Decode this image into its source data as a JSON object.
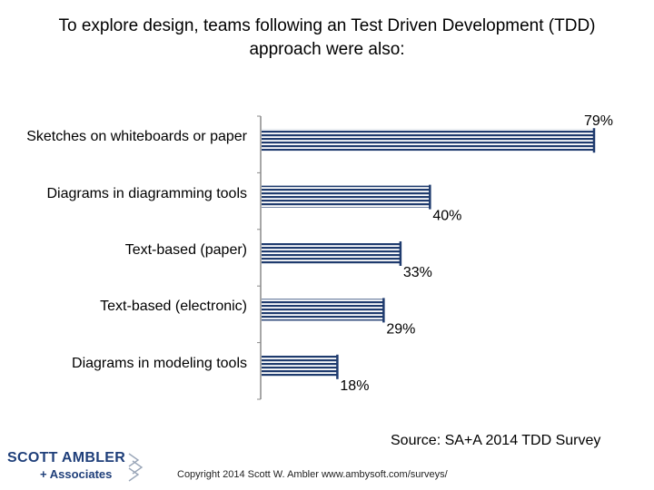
{
  "title": "To explore design, teams following an Test Driven Development (TDD) approach were also:",
  "chart_data": {
    "type": "bar",
    "orientation": "horizontal",
    "title": "To explore design, teams following an Test Driven Development (TDD) approach were also:",
    "categories": [
      "Sketches on whiteboards or paper",
      "Diagrams in diagramming tools",
      "Text-based (paper)",
      "Text-based (electronic)",
      "Diagrams in modeling tools"
    ],
    "values": [
      79,
      40,
      33,
      29,
      18
    ],
    "data_labels": [
      "79%",
      "40%",
      "33%",
      "29%",
      "18%"
    ],
    "xlim": [
      0,
      80
    ],
    "xlabel": "",
    "ylabel": "",
    "bar_color": "#1f3b6e",
    "stripe_color": "#ffffff"
  },
  "source": "Source: SA+A 2014 TDD Survey",
  "copyright": "Copyright 2014 Scott W. Ambler www.ambysoft.com/surveys/",
  "logo": {
    "line1": "SCOTT AMBLER",
    "line2": "+ Associates",
    "color": "#1f3f7a"
  }
}
